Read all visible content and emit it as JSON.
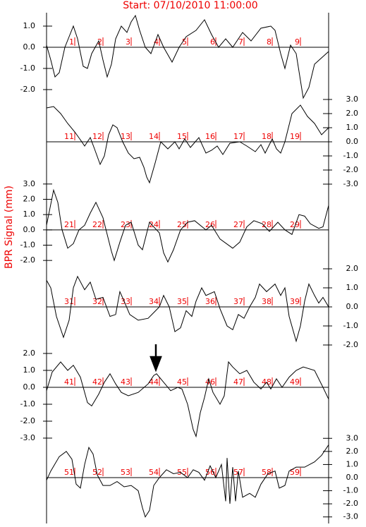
{
  "title": "Start: 07/10/2010 11:00:00",
  "y_label": "BPR Signal (mm)",
  "chart_data": [
    {
      "type": "line",
      "axis_side": "left",
      "color": "#000000",
      "marker_color": "#ee0000",
      "xlim": [
        0,
        10
      ],
      "ylim": [
        -2.5,
        1.7
      ],
      "yticks": [
        {
          "value": 1,
          "label": "1.0"
        },
        {
          "value": 0,
          "label": "0.0"
        },
        {
          "value": -1,
          "label": "-1.0"
        },
        {
          "value": -2,
          "label": "-2.0"
        }
      ],
      "markers": [
        1,
        2,
        3,
        4,
        5,
        6,
        7,
        8,
        9
      ],
      "x": [
        0,
        0.15,
        0.3,
        0.45,
        0.65,
        0.8,
        0.95,
        1.1,
        1.3,
        1.45,
        1.6,
        1.85,
        2,
        2.15,
        2.3,
        2.45,
        2.65,
        2.85,
        3,
        3.15,
        3.3,
        3.5,
        3.7,
        3.95,
        4.15,
        4.45,
        4.7,
        4.95,
        5.3,
        5.6,
        5.85,
        6.1,
        6.35,
        6.6,
        6.95,
        7.25,
        7.6,
        7.95,
        8.1,
        8.3,
        8.45,
        8.65,
        8.85,
        9.1,
        9.3,
        9.5,
        9.75,
        10
      ],
      "values": [
        0.1,
        -0.6,
        -1.4,
        -1.2,
        0,
        0.5,
        1,
        0.4,
        -0.9,
        -1,
        -0.3,
        0.3,
        -0.6,
        -1.4,
        -0.8,
        0.4,
        1,
        0.7,
        1.2,
        1.5,
        0.8,
        0,
        -0.3,
        0.6,
        0,
        -0.7,
        0,
        0.5,
        0.8,
        1.3,
        0.6,
        0,
        0.4,
        0,
        0.7,
        0.3,
        0.9,
        1,
        0.8,
        -0.3,
        -1,
        0.1,
        -0.3,
        -2.4,
        -1.9,
        -0.8,
        -0.5,
        -0.2
      ]
    },
    {
      "type": "line",
      "axis_side": "right",
      "color": "#000000",
      "marker_color": "#ee0000",
      "xlim": [
        10,
        20
      ],
      "ylim": [
        -3.3,
        3.3
      ],
      "yticks": [
        {
          "value": 3,
          "label": "3.0"
        },
        {
          "value": 2,
          "label": "2.0"
        },
        {
          "value": 1,
          "label": "1.0"
        },
        {
          "value": 0,
          "label": "0.0"
        },
        {
          "value": -1,
          "label": "-1.0"
        },
        {
          "value": -2,
          "label": "-2.0"
        },
        {
          "value": -3,
          "label": "-3.0"
        }
      ],
      "markers": [
        11,
        12,
        13,
        14,
        15,
        16,
        17,
        18,
        19
      ],
      "x": [
        10,
        10.25,
        10.5,
        10.75,
        11,
        11.25,
        11.35,
        11.55,
        11.7,
        11.9,
        12.05,
        12.2,
        12.35,
        12.5,
        12.7,
        12.9,
        13.1,
        13.3,
        13.45,
        13.55,
        13.65,
        13.85,
        14.05,
        14.3,
        14.55,
        14.7,
        14.9,
        15.1,
        15.4,
        15.65,
        15.85,
        16.05,
        16.25,
        16.5,
        16.85,
        17.1,
        17.4,
        17.6,
        17.75,
        18,
        18.15,
        18.3,
        18.45,
        18.7,
        19,
        19.25,
        19.5,
        19.75,
        20
      ],
      "values": [
        2.4,
        2.5,
        2,
        1.3,
        0.7,
        0,
        -0.3,
        0.3,
        -0.5,
        -1.6,
        -1,
        0.5,
        1.2,
        1,
        0,
        -0.8,
        -1.2,
        -1.1,
        -1.8,
        -2.5,
        -2.9,
        -1.5,
        0,
        -0.5,
        0,
        -0.5,
        0.2,
        -0.4,
        0.3,
        -0.8,
        -0.6,
        -0.3,
        -0.9,
        -0.1,
        0,
        -0.3,
        -0.7,
        -0.2,
        -0.8,
        0.2,
        -0.5,
        -0.8,
        0,
        2,
        2.6,
        1.8,
        1.3,
        0.5,
        1
      ]
    },
    {
      "type": "line",
      "axis_side": "left",
      "color": "#000000",
      "marker_color": "#ee0000",
      "xlim": [
        20,
        30
      ],
      "ylim": [
        -2.5,
        3.5
      ],
      "yticks": [
        {
          "value": 3,
          "label": "3.0"
        },
        {
          "value": 2,
          "label": "2.0"
        },
        {
          "value": 1,
          "label": "1.0"
        },
        {
          "value": 0,
          "label": "0.0"
        },
        {
          "value": -1,
          "label": "-1.0"
        },
        {
          "value": -2,
          "label": "-2.0"
        }
      ],
      "markers": [
        21,
        22,
        23,
        24,
        25,
        26,
        27,
        28,
        29
      ],
      "x": [
        20,
        20.25,
        20.4,
        20.55,
        20.75,
        20.95,
        21.15,
        21.35,
        21.55,
        21.75,
        22,
        22.3,
        22.4,
        22.6,
        22.8,
        23,
        23.25,
        23.4,
        23.65,
        23.85,
        24,
        24.15,
        24.3,
        24.5,
        24.75,
        25,
        25.25,
        25.65,
        25.85,
        26.15,
        26.6,
        26.85,
        27.1,
        27.35,
        27.65,
        27.9,
        28.2,
        28.45,
        28.7,
        28.95,
        29.15,
        29.35,
        29.65,
        29.8,
        30
      ],
      "values": [
        0.3,
        2.6,
        1.8,
        0,
        -1.2,
        -0.9,
        0,
        0.3,
        1.1,
        1.8,
        0.8,
        -1.4,
        -2,
        -0.8,
        0.3,
        0.5,
        -1,
        -1.3,
        0.5,
        0.1,
        -0.2,
        -1.5,
        -2.1,
        -1.3,
        0,
        0.5,
        0.6,
        0,
        0.3,
        -0.6,
        -1.2,
        -0.8,
        0.2,
        0.6,
        0.4,
        -0.1,
        0.5,
        0,
        -0.3,
        1,
        0.9,
        0.4,
        0.1,
        0.2,
        1.6
      ]
    },
    {
      "type": "line",
      "axis_side": "right",
      "color": "#000000",
      "marker_color": "#ee0000",
      "xlim": [
        30,
        40
      ],
      "ylim": [
        -2.5,
        2.5
      ],
      "yticks": [
        {
          "value": 2,
          "label": "2.0"
        },
        {
          "value": 1,
          "label": "1.0"
        },
        {
          "value": 0,
          "label": "0.0"
        },
        {
          "value": -1,
          "label": "-1.0"
        },
        {
          "value": -2,
          "label": "-2.0"
        }
      ],
      "markers": [
        31,
        32,
        33,
        34,
        35,
        36,
        37,
        38,
        39
      ],
      "x": [
        30,
        30.15,
        30.35,
        30.6,
        30.8,
        30.95,
        31.1,
        31.35,
        31.55,
        31.75,
        32,
        32.25,
        32.45,
        32.6,
        32.75,
        32.95,
        33.25,
        33.6,
        33.8,
        34,
        34.15,
        34.35,
        34.55,
        34.75,
        34.95,
        35.15,
        35.3,
        35.5,
        35.65,
        35.95,
        36.15,
        36.4,
        36.6,
        36.8,
        37,
        37.2,
        37.4,
        37.55,
        37.8,
        38.1,
        38.3,
        38.45,
        38.6,
        38.85,
        39,
        39.15,
        39.3,
        39.5,
        39.65,
        39.8,
        40
      ],
      "values": [
        1.4,
        1,
        -0.5,
        -1.6,
        -0.7,
        1,
        1.6,
        0.9,
        1.3,
        0.4,
        0.5,
        -0.5,
        -0.4,
        0.8,
        0.3,
        -0.4,
        -0.7,
        -0.6,
        -0.3,
        0,
        0.6,
        0,
        -1.3,
        -1.1,
        -0.2,
        -0.5,
        0.3,
        1,
        0.6,
        0.8,
        -0.1,
        -1,
        -1.2,
        -0.4,
        -0.6,
        0,
        0.5,
        1.2,
        0.8,
        1.2,
        0.6,
        1,
        -0.5,
        -1.8,
        -1,
        0.3,
        1.2,
        0.6,
        0.2,
        0.5,
        0
      ]
    },
    {
      "type": "line",
      "axis_side": "left",
      "color": "#000000",
      "marker_color": "#ee0000",
      "xlim": [
        40,
        50
      ],
      "ylim": [
        -3.5,
        2.5
      ],
      "yticks": [
        {
          "value": 2,
          "label": "2.0"
        },
        {
          "value": 1,
          "label": "1.0"
        },
        {
          "value": 0,
          "label": "0.0"
        },
        {
          "value": -1,
          "label": "-1.0"
        },
        {
          "value": -2,
          "label": "-2.0"
        },
        {
          "value": -3,
          "label": "-3.0"
        }
      ],
      "markers": [
        41,
        42,
        43,
        44,
        45,
        46,
        47,
        48,
        49
      ],
      "x": [
        40,
        40.2,
        40.5,
        40.75,
        40.95,
        41.2,
        41.45,
        41.6,
        41.85,
        42.05,
        42.25,
        42.45,
        42.65,
        42.9,
        43.25,
        43.6,
        43.8,
        43.9,
        44.15,
        44.4,
        44.65,
        44.8,
        45,
        45.2,
        45.3,
        45.45,
        45.6,
        45.75,
        45.9,
        46.15,
        46.3,
        46.45,
        46.6,
        46.85,
        47.1,
        47.35,
        47.6,
        47.8,
        47.95,
        48.15,
        48.35,
        48.6,
        48.85,
        49.1,
        49.5,
        49.8,
        50
      ],
      "values": [
        -0.2,
        0.9,
        1.5,
        1,
        1.3,
        0.6,
        -0.9,
        -1.1,
        -0.4,
        0.3,
        0.8,
        0.2,
        -0.3,
        -0.5,
        -0.3,
        0.2,
        0.7,
        0.8,
        0.3,
        -0.2,
        0,
        -0.1,
        -1,
        -2.5,
        -2.9,
        -1.5,
        -0.6,
        0.5,
        -0.3,
        -1,
        -0.5,
        1.5,
        1.2,
        0.8,
        1,
        0.3,
        -0.1,
        0.3,
        -0.1,
        0.5,
        0,
        0.6,
        1,
        1.2,
        1,
        0,
        -0.7
      ]
    },
    {
      "type": "line",
      "axis_side": "right",
      "color": "#000000",
      "marker_color": "#ee0000",
      "xlim": [
        50,
        60
      ],
      "ylim": [
        -3.5,
        3.5
      ],
      "yticks": [
        {
          "value": 3,
          "label": "3.0"
        },
        {
          "value": 2,
          "label": "2.0"
        },
        {
          "value": 1,
          "label": "1.0"
        },
        {
          "value": 0,
          "label": "0.0"
        },
        {
          "value": -1,
          "label": "-1.0"
        },
        {
          "value": -2,
          "label": "-2.0"
        },
        {
          "value": -3,
          "label": "-3.0"
        }
      ],
      "markers": [
        51,
        52,
        53,
        54,
        55,
        56,
        57,
        58,
        59
      ],
      "x": [
        50,
        50.15,
        50.45,
        50.7,
        50.9,
        51.05,
        51.2,
        51.35,
        51.5,
        51.65,
        51.8,
        52,
        52.25,
        52.5,
        52.75,
        53,
        53.25,
        53.4,
        53.5,
        53.65,
        53.8,
        54,
        54.25,
        54.5,
        54.75,
        55,
        55.2,
        55.4,
        55.6,
        55.8,
        56,
        56.2,
        56.35,
        56.4,
        56.5,
        56.6,
        56.7,
        56.8,
        56.95,
        57.2,
        57.4,
        57.6,
        57.85,
        58.1,
        58.25,
        58.45,
        58.6,
        58.85,
        59.15,
        59.5,
        59.75,
        60
      ],
      "values": [
        -0.2,
        0.5,
        1.6,
        2,
        1.4,
        -0.5,
        -0.8,
        1,
        2.3,
        1.8,
        0.2,
        -0.6,
        -0.6,
        -0.3,
        -0.7,
        -0.6,
        -1,
        -2.3,
        -3,
        -2.5,
        -0.6,
        0,
        0.6,
        0.3,
        0.4,
        0,
        0.6,
        0.4,
        -0.2,
        0.9,
        0,
        1,
        -1.8,
        1.5,
        -2,
        0.8,
        -1.8,
        0.5,
        -1.5,
        -1.2,
        -1.5,
        -0.5,
        0.3,
        0.5,
        -0.8,
        -0.6,
        0.5,
        0.8,
        0.8,
        1.2,
        1.7,
        2.5
      ]
    }
  ]
}
